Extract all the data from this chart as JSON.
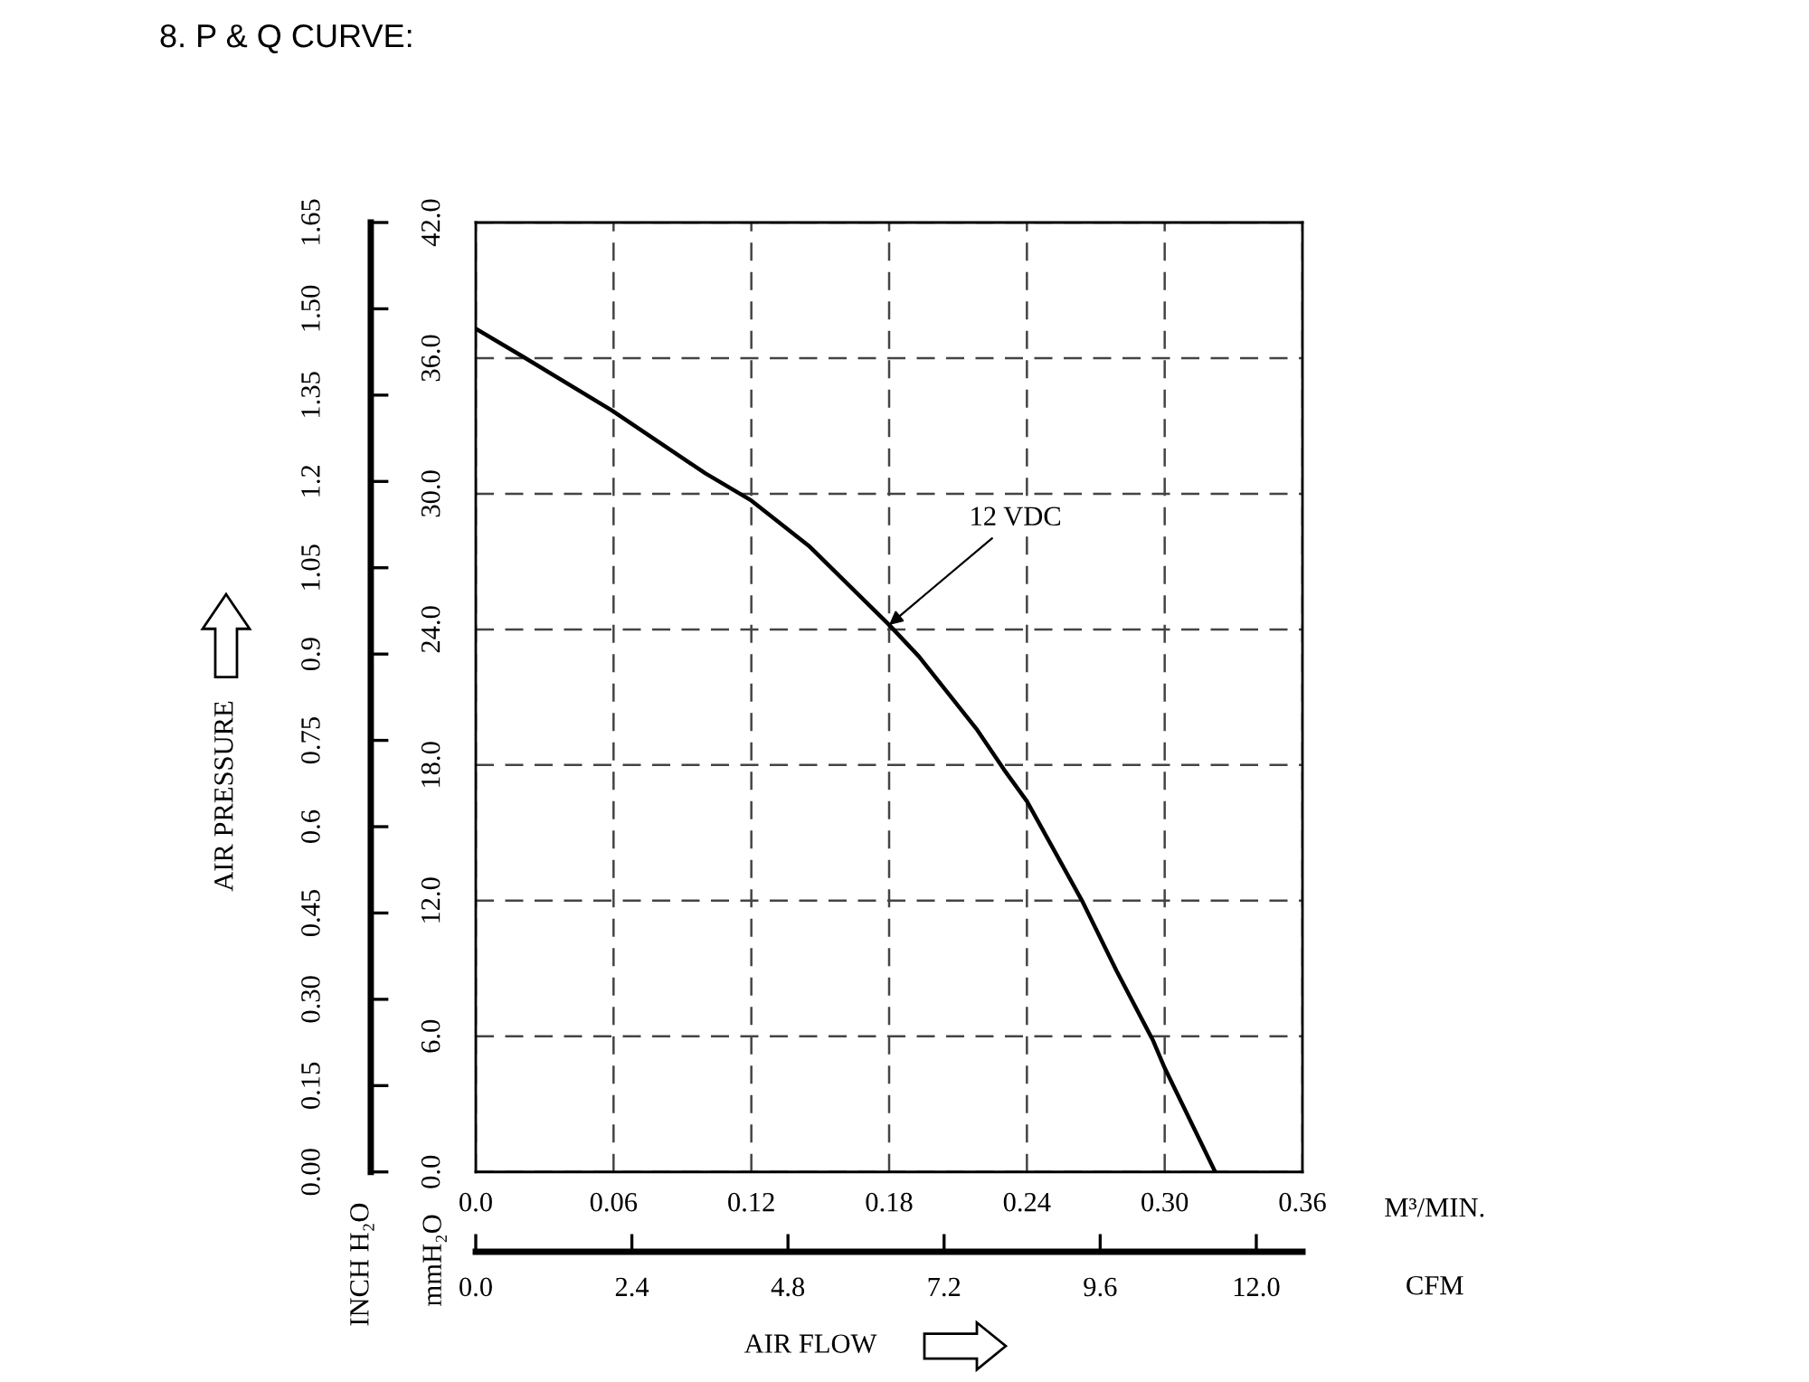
{
  "chart_data": {
    "type": "line",
    "title": "8. P & Q CURVE:",
    "xlabel": "M³/MIN.",
    "ylabel": "mmH₂O",
    "x2label": "CFM",
    "y2label": "AIR PRESSURE",
    "annotations": [
      "AIR FLOW",
      "INCH H₂O"
    ],
    "series": [
      {
        "name": "12 VDC",
        "color": "#000000",
        "x": [
          0,
          0.02,
          0.059,
          0.1,
          0.12,
          0.145,
          0.18,
          0.193,
          0.218,
          0.23,
          0.24,
          0.252,
          0.264,
          0.279,
          0.295,
          0.3,
          0.322
        ],
        "values": [
          37.3,
          36.1,
          33.7,
          30.9,
          29.7,
          27.7,
          24.2,
          22.8,
          19.6,
          17.8,
          16.4,
          14.2,
          12.0,
          8.9,
          5.8,
          4.6,
          0
        ]
      }
    ],
    "xlim": [
      0,
      0.36
    ],
    "xticks": [
      {
        "value": 0,
        "label": "0.0"
      },
      0.06,
      0.12,
      0.18,
      0.24,
      {
        "value": 0.3,
        "label": "0.30"
      },
      0.36
    ],
    "ylim": [
      0,
      42
    ],
    "yticks": [
      {
        "value": 0,
        "label": "0.0"
      },
      {
        "value": 6,
        "label": "6.0"
      },
      {
        "value": 12,
        "label": "12.0"
      },
      {
        "value": 18,
        "label": "18.0"
      },
      {
        "value": 24,
        "label": "24.0"
      },
      {
        "value": 30,
        "label": "30.0"
      },
      {
        "value": 36,
        "label": "36.0"
      },
      {
        "value": 42,
        "label": "42.0"
      }
    ],
    "y2lim": [
      0,
      1.65
    ],
    "y2ticks": [
      {
        "value": 0,
        "label": "0.00"
      },
      0.15,
      {
        "value": 0.3,
        "label": "0.30"
      },
      0.45,
      0.6,
      0.75,
      0.9,
      1.05,
      1.2,
      1.35,
      {
        "value": 1.5,
        "label": "1.50"
      },
      1.65
    ],
    "x2lim": [
      0,
      12.71
    ],
    "x2ticks": [
      {
        "value": 0,
        "label": "0.0"
      },
      2.4,
      4.8,
      7.2,
      9.6,
      {
        "value": 12,
        "label": "12.0"
      }
    ],
    "grid": true,
    "line_style": "solid",
    "marker": "none",
    "legend": false
  }
}
